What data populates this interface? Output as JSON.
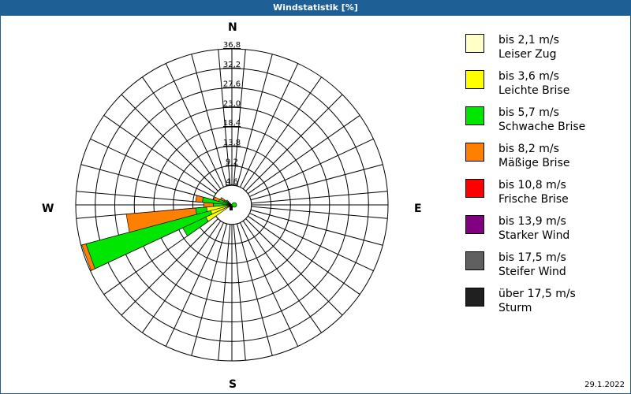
{
  "window": {
    "title": "Windstatistik [%]"
  },
  "compass": {
    "n": "N",
    "e": "E",
    "s": "S",
    "w": "W"
  },
  "footer": {
    "date": "29.1.2022"
  },
  "legend": [
    {
      "speed": "bis 2,1 m/s",
      "name": "Leiser Zug",
      "color": "#ffffc8"
    },
    {
      "speed": "bis 3,6 m/s",
      "name": "Leichte Brise",
      "color": "#ffff00"
    },
    {
      "speed": "bis 5,7 m/s",
      "name": "Schwache Brise",
      "color": "#00e600"
    },
    {
      "speed": "bis 8,2 m/s",
      "name": "Mäßige Brise",
      "color": "#ff8000"
    },
    {
      "speed": "bis 10,8 m/s",
      "name": "Frische Brise",
      "color": "#ff0000"
    },
    {
      "speed": "bis 13,9 m/s",
      "name": "Starker Wind",
      "color": "#800080"
    },
    {
      "speed": "bis 17,5 m/s",
      "name": "Steifer Wind",
      "color": "#606060"
    },
    {
      "speed": "über 17,5 m/s",
      "name": "Sturm",
      "color": "#202020"
    }
  ],
  "chart_data": {
    "type": "wind-rose",
    "title": "Windstatistik [%]",
    "radial_ticks": [
      4.6,
      9.2,
      13.8,
      18.4,
      23.0,
      27.6,
      32.2,
      36.8
    ],
    "radial_tick_labels": [
      "4,6",
      "9,2",
      "13,8",
      "18,4",
      "23,0",
      "27,6",
      "32,2",
      "36,8"
    ],
    "rmax": 36.8,
    "sector_width_deg": 10,
    "directions": [
      "N",
      "E",
      "S",
      "W"
    ],
    "classes": [
      "Leiser Zug",
      "Leichte Brise",
      "Schwache Brise",
      "Mäßige Brise",
      "Frische Brise",
      "Starker Wind",
      "Steifer Wind",
      "Sturm"
    ],
    "sectors": [
      {
        "dir": 240,
        "cumulative": [
          0.3,
          6.8,
          12.8,
          12.8
        ]
      },
      {
        "dir": 250,
        "cumulative": [
          0.3,
          5.2,
          35.6,
          36.6
        ]
      },
      {
        "dir": 260,
        "cumulative": [
          0.3,
          6.0,
          8.6,
          25.0
        ]
      },
      {
        "dir": 270,
        "cumulative": [
          0.2,
          0.4,
          4.4,
          6.6
        ]
      },
      {
        "dir": 280,
        "cumulative": [
          0.2,
          0.6,
          7.0,
          8.6
        ]
      },
      {
        "dir": 290,
        "cumulative": [
          0.1,
          0.3,
          3.2,
          4.4
        ]
      },
      {
        "dir": 300,
        "cumulative": [
          0.1,
          0.2,
          2.0,
          3.0
        ]
      },
      {
        "dir": 310,
        "cumulative": [
          0.0,
          0.1,
          1.2,
          1.6
        ]
      },
      {
        "dir": 60,
        "cumulative": [
          0.1,
          0.3,
          0.8,
          0.8
        ]
      }
    ]
  }
}
